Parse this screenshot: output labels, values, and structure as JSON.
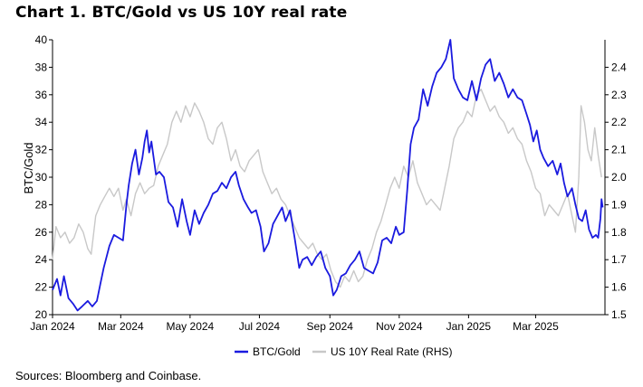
{
  "title": "Chart 1. BTC/Gold vs US 10Y real rate",
  "source": "Sources: Bloomberg and Coinbase.",
  "chart_data": {
    "type": "line",
    "ylabel": "BTC/Gold",
    "x_range": [
      "2024-01-01",
      "2025-05-01"
    ],
    "x_ticks": [
      {
        "date": "2024-01-01",
        "label": "Jan 2024"
      },
      {
        "date": "2024-03-01",
        "label": "Mar 2024"
      },
      {
        "date": "2024-05-01",
        "label": "May 2024"
      },
      {
        "date": "2024-07-01",
        "label": "Jul 2024"
      },
      {
        "date": "2024-09-01",
        "label": "Sep 2024"
      },
      {
        "date": "2024-11-01",
        "label": "Nov 2024"
      },
      {
        "date": "2025-01-01",
        "label": "Jan 2025"
      },
      {
        "date": "2025-03-01",
        "label": "Mar 2025"
      }
    ],
    "ylim_left": [
      20,
      40
    ],
    "ylim_right": [
      1.5,
      2.5
    ],
    "left_ticks": [
      "20",
      "22",
      "24",
      "26",
      "28",
      "30",
      "32",
      "34",
      "36",
      "38",
      "40"
    ],
    "right_ticks": [
      "1.5",
      "1.6",
      "1.7",
      "1.8",
      "1.9",
      "2.0",
      "2.1",
      "2.2",
      "2.3",
      "2.4"
    ],
    "legend_position": "bottom",
    "grid": false,
    "series": [
      {
        "name": "BTC/Gold",
        "axis": "left",
        "color": "#1a1adf",
        "points": [
          [
            "2024-01-01",
            21.8
          ],
          [
            "2024-01-05",
            22.6
          ],
          [
            "2024-01-08",
            21.4
          ],
          [
            "2024-01-11",
            22.8
          ],
          [
            "2024-01-15",
            21.2
          ],
          [
            "2024-01-19",
            20.8
          ],
          [
            "2024-01-23",
            20.3
          ],
          [
            "2024-01-27",
            20.6
          ],
          [
            "2024-02-01",
            21.0
          ],
          [
            "2024-02-05",
            20.6
          ],
          [
            "2024-02-09",
            21.0
          ],
          [
            "2024-02-12",
            22.2
          ],
          [
            "2024-02-15",
            23.4
          ],
          [
            "2024-02-20",
            25.0
          ],
          [
            "2024-02-24",
            25.8
          ],
          [
            "2024-02-28",
            25.6
          ],
          [
            "2024-03-03",
            25.4
          ],
          [
            "2024-03-06",
            28.0
          ],
          [
            "2024-03-08",
            29.4
          ],
          [
            "2024-03-11",
            31.0
          ],
          [
            "2024-03-14",
            32.0
          ],
          [
            "2024-03-17",
            30.2
          ],
          [
            "2024-03-20",
            31.4
          ],
          [
            "2024-03-22",
            32.6
          ],
          [
            "2024-03-24",
            33.4
          ],
          [
            "2024-03-26",
            31.8
          ],
          [
            "2024-03-28",
            32.6
          ],
          [
            "2024-04-01",
            30.2
          ],
          [
            "2024-04-04",
            30.4
          ],
          [
            "2024-04-08",
            30.0
          ],
          [
            "2024-04-12",
            28.2
          ],
          [
            "2024-04-16",
            27.8
          ],
          [
            "2024-04-20",
            26.4
          ],
          [
            "2024-04-24",
            28.4
          ],
          [
            "2024-04-28",
            26.8
          ],
          [
            "2024-05-01",
            25.8
          ],
          [
            "2024-05-05",
            27.6
          ],
          [
            "2024-05-09",
            26.6
          ],
          [
            "2024-05-13",
            27.4
          ],
          [
            "2024-05-17",
            28.0
          ],
          [
            "2024-05-21",
            28.8
          ],
          [
            "2024-05-25",
            29.0
          ],
          [
            "2024-05-29",
            29.6
          ],
          [
            "2024-06-02",
            29.2
          ],
          [
            "2024-06-06",
            30.0
          ],
          [
            "2024-06-10",
            30.4
          ],
          [
            "2024-06-13",
            29.4
          ],
          [
            "2024-06-17",
            28.4
          ],
          [
            "2024-06-21",
            27.8
          ],
          [
            "2024-06-24",
            27.4
          ],
          [
            "2024-06-28",
            27.6
          ],
          [
            "2024-07-02",
            26.4
          ],
          [
            "2024-07-05",
            24.6
          ],
          [
            "2024-07-09",
            25.2
          ],
          [
            "2024-07-13",
            26.6
          ],
          [
            "2024-07-17",
            27.2
          ],
          [
            "2024-07-21",
            27.8
          ],
          [
            "2024-07-24",
            26.8
          ],
          [
            "2024-07-28",
            27.6
          ],
          [
            "2024-08-01",
            25.6
          ],
          [
            "2024-08-05",
            23.4
          ],
          [
            "2024-08-08",
            24.0
          ],
          [
            "2024-08-12",
            24.2
          ],
          [
            "2024-08-16",
            23.6
          ],
          [
            "2024-08-20",
            24.2
          ],
          [
            "2024-08-24",
            24.6
          ],
          [
            "2024-08-28",
            23.4
          ],
          [
            "2024-09-01",
            22.8
          ],
          [
            "2024-09-04",
            21.4
          ],
          [
            "2024-09-07",
            21.8
          ],
          [
            "2024-09-11",
            22.8
          ],
          [
            "2024-09-15",
            23.0
          ],
          [
            "2024-09-19",
            23.6
          ],
          [
            "2024-09-23",
            24.0
          ],
          [
            "2024-09-27",
            24.6
          ],
          [
            "2024-10-01",
            23.4
          ],
          [
            "2024-10-05",
            23.2
          ],
          [
            "2024-10-09",
            23.0
          ],
          [
            "2024-10-13",
            23.8
          ],
          [
            "2024-10-17",
            25.4
          ],
          [
            "2024-10-21",
            25.6
          ],
          [
            "2024-10-25",
            25.2
          ],
          [
            "2024-10-29",
            26.4
          ],
          [
            "2024-11-01",
            25.8
          ],
          [
            "2024-11-05",
            26.0
          ],
          [
            "2024-11-08",
            29.0
          ],
          [
            "2024-11-11",
            32.4
          ],
          [
            "2024-11-14",
            33.6
          ],
          [
            "2024-11-18",
            34.2
          ],
          [
            "2024-11-22",
            36.4
          ],
          [
            "2024-11-26",
            35.2
          ],
          [
            "2024-11-30",
            36.6
          ],
          [
            "2024-12-04",
            37.6
          ],
          [
            "2024-12-08",
            38.0
          ],
          [
            "2024-12-12",
            38.6
          ],
          [
            "2024-12-16",
            40.0
          ],
          [
            "2024-12-19",
            37.2
          ],
          [
            "2024-12-23",
            36.4
          ],
          [
            "2024-12-27",
            35.8
          ],
          [
            "2024-12-31",
            35.6
          ],
          [
            "2025-01-04",
            37.0
          ],
          [
            "2025-01-08",
            35.6
          ],
          [
            "2025-01-12",
            37.2
          ],
          [
            "2025-01-16",
            38.2
          ],
          [
            "2025-01-20",
            38.6
          ],
          [
            "2025-01-24",
            37.0
          ],
          [
            "2025-01-28",
            37.6
          ],
          [
            "2025-02-01",
            36.8
          ],
          [
            "2025-02-05",
            35.8
          ],
          [
            "2025-02-09",
            36.4
          ],
          [
            "2025-02-13",
            35.8
          ],
          [
            "2025-02-17",
            35.6
          ],
          [
            "2025-02-21",
            34.6
          ],
          [
            "2025-02-24",
            33.8
          ],
          [
            "2025-02-27",
            32.6
          ],
          [
            "2025-03-02",
            33.4
          ],
          [
            "2025-03-05",
            32.0
          ],
          [
            "2025-03-08",
            31.4
          ],
          [
            "2025-03-12",
            30.8
          ],
          [
            "2025-03-16",
            31.2
          ],
          [
            "2025-03-20",
            30.2
          ],
          [
            "2025-03-23",
            31.0
          ],
          [
            "2025-03-26",
            29.6
          ],
          [
            "2025-03-29",
            28.6
          ],
          [
            "2025-04-02",
            29.2
          ],
          [
            "2025-04-05",
            28.0
          ],
          [
            "2025-04-08",
            27.0
          ],
          [
            "2025-04-11",
            26.8
          ],
          [
            "2025-04-14",
            27.6
          ],
          [
            "2025-04-17",
            26.2
          ],
          [
            "2025-04-20",
            25.6
          ],
          [
            "2025-04-23",
            25.8
          ],
          [
            "2025-04-25",
            25.6
          ],
          [
            "2025-04-27",
            27.0
          ],
          [
            "2025-04-28",
            28.4
          ],
          [
            "2025-04-29",
            27.8
          ]
        ]
      },
      {
        "name": "US 10Y Real Rate (RHS)",
        "axis": "right",
        "color": "#c8c8c8",
        "points": [
          [
            "2024-01-01",
            1.7
          ],
          [
            "2024-01-04",
            1.82
          ],
          [
            "2024-01-08",
            1.78
          ],
          [
            "2024-01-12",
            1.8
          ],
          [
            "2024-01-16",
            1.76
          ],
          [
            "2024-01-20",
            1.78
          ],
          [
            "2024-01-24",
            1.83
          ],
          [
            "2024-01-28",
            1.8
          ],
          [
            "2024-02-01",
            1.74
          ],
          [
            "2024-02-04",
            1.72
          ],
          [
            "2024-02-08",
            1.86
          ],
          [
            "2024-02-12",
            1.9
          ],
          [
            "2024-02-16",
            1.93
          ],
          [
            "2024-02-20",
            1.96
          ],
          [
            "2024-02-24",
            1.93
          ],
          [
            "2024-02-28",
            1.96
          ],
          [
            "2024-03-03",
            1.88
          ],
          [
            "2024-03-06",
            1.92
          ],
          [
            "2024-03-10",
            1.86
          ],
          [
            "2024-03-14",
            1.94
          ],
          [
            "2024-03-18",
            1.98
          ],
          [
            "2024-03-22",
            1.94
          ],
          [
            "2024-03-26",
            1.96
          ],
          [
            "2024-03-30",
            1.97
          ],
          [
            "2024-04-03",
            2.04
          ],
          [
            "2024-04-07",
            2.08
          ],
          [
            "2024-04-11",
            2.12
          ],
          [
            "2024-04-15",
            2.2
          ],
          [
            "2024-04-19",
            2.24
          ],
          [
            "2024-04-23",
            2.2
          ],
          [
            "2024-04-27",
            2.26
          ],
          [
            "2024-05-01",
            2.22
          ],
          [
            "2024-05-05",
            2.27
          ],
          [
            "2024-05-09",
            2.24
          ],
          [
            "2024-05-13",
            2.2
          ],
          [
            "2024-05-17",
            2.14
          ],
          [
            "2024-05-21",
            2.12
          ],
          [
            "2024-05-25",
            2.18
          ],
          [
            "2024-05-29",
            2.2
          ],
          [
            "2024-06-02",
            2.14
          ],
          [
            "2024-06-06",
            2.06
          ],
          [
            "2024-06-10",
            2.1
          ],
          [
            "2024-06-14",
            2.04
          ],
          [
            "2024-06-18",
            2.02
          ],
          [
            "2024-06-22",
            2.06
          ],
          [
            "2024-06-26",
            2.08
          ],
          [
            "2024-06-30",
            2.1
          ],
          [
            "2024-07-04",
            2.02
          ],
          [
            "2024-07-08",
            1.98
          ],
          [
            "2024-07-12",
            1.94
          ],
          [
            "2024-07-16",
            1.96
          ],
          [
            "2024-07-20",
            1.92
          ],
          [
            "2024-07-24",
            1.9
          ],
          [
            "2024-07-28",
            1.86
          ],
          [
            "2024-08-01",
            1.82
          ],
          [
            "2024-08-05",
            1.78
          ],
          [
            "2024-08-09",
            1.76
          ],
          [
            "2024-08-13",
            1.74
          ],
          [
            "2024-08-17",
            1.76
          ],
          [
            "2024-08-21",
            1.72
          ],
          [
            "2024-08-25",
            1.7
          ],
          [
            "2024-08-29",
            1.72
          ],
          [
            "2024-09-02",
            1.66
          ],
          [
            "2024-09-06",
            1.62
          ],
          [
            "2024-09-10",
            1.6
          ],
          [
            "2024-09-14",
            1.64
          ],
          [
            "2024-09-18",
            1.62
          ],
          [
            "2024-09-22",
            1.66
          ],
          [
            "2024-09-26",
            1.62
          ],
          [
            "2024-09-30",
            1.64
          ],
          [
            "2024-10-04",
            1.7
          ],
          [
            "2024-10-08",
            1.74
          ],
          [
            "2024-10-12",
            1.8
          ],
          [
            "2024-10-16",
            1.84
          ],
          [
            "2024-10-20",
            1.9
          ],
          [
            "2024-10-24",
            1.96
          ],
          [
            "2024-10-28",
            2.0
          ],
          [
            "2024-11-01",
            1.96
          ],
          [
            "2024-11-05",
            2.04
          ],
          [
            "2024-11-09",
            2.0
          ],
          [
            "2024-11-13",
            2.06
          ],
          [
            "2024-11-17",
            1.98
          ],
          [
            "2024-11-21",
            1.94
          ],
          [
            "2024-11-25",
            1.9
          ],
          [
            "2024-11-29",
            1.92
          ],
          [
            "2024-12-03",
            1.9
          ],
          [
            "2024-12-07",
            1.88
          ],
          [
            "2024-12-11",
            1.96
          ],
          [
            "2024-12-15",
            2.04
          ],
          [
            "2024-12-19",
            2.14
          ],
          [
            "2024-12-23",
            2.18
          ],
          [
            "2024-12-27",
            2.2
          ],
          [
            "2024-12-31",
            2.24
          ],
          [
            "2025-01-04",
            2.22
          ],
          [
            "2025-01-08",
            2.3
          ],
          [
            "2025-01-12",
            2.32
          ],
          [
            "2025-01-16",
            2.28
          ],
          [
            "2025-01-20",
            2.24
          ],
          [
            "2025-01-24",
            2.26
          ],
          [
            "2025-01-28",
            2.22
          ],
          [
            "2025-02-01",
            2.2
          ],
          [
            "2025-02-05",
            2.16
          ],
          [
            "2025-02-09",
            2.18
          ],
          [
            "2025-02-13",
            2.14
          ],
          [
            "2025-02-17",
            2.12
          ],
          [
            "2025-02-21",
            2.06
          ],
          [
            "2025-02-25",
            2.02
          ],
          [
            "2025-03-01",
            1.96
          ],
          [
            "2025-03-05",
            1.94
          ],
          [
            "2025-03-09",
            1.86
          ],
          [
            "2025-03-13",
            1.9
          ],
          [
            "2025-03-17",
            1.88
          ],
          [
            "2025-03-21",
            1.86
          ],
          [
            "2025-03-25",
            1.9
          ],
          [
            "2025-03-29",
            1.94
          ],
          [
            "2025-04-02",
            1.86
          ],
          [
            "2025-04-05",
            1.8
          ],
          [
            "2025-04-08",
            2.0
          ],
          [
            "2025-04-10",
            2.26
          ],
          [
            "2025-04-13",
            2.2
          ],
          [
            "2025-04-16",
            2.1
          ],
          [
            "2025-04-19",
            2.06
          ],
          [
            "2025-04-22",
            2.18
          ],
          [
            "2025-04-25",
            2.08
          ],
          [
            "2025-04-28",
            2.0
          ]
        ]
      }
    ]
  }
}
